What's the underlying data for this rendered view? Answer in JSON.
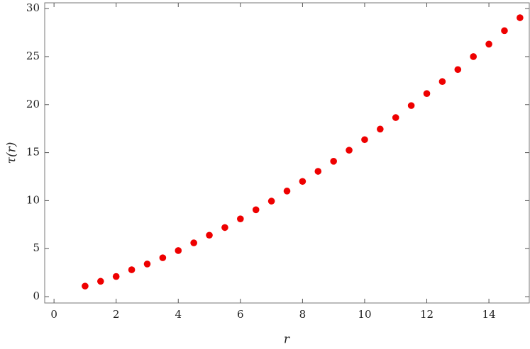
{
  "chart_data": {
    "type": "scatter",
    "x_label": "r",
    "y_label": "τ(r)",
    "x": [
      1,
      1.5,
      2,
      2.5,
      3,
      3.5,
      4,
      4.5,
      5,
      5.5,
      6,
      6.5,
      7,
      7.5,
      8,
      8.5,
      9,
      9.5,
      10,
      10.5,
      11,
      11.5,
      12,
      12.5,
      13,
      13.5,
      14,
      14.5,
      15
    ],
    "values": [
      1.1,
      1.6,
      2.1,
      2.8,
      3.4,
      4.05,
      4.8,
      5.6,
      6.4,
      7.2,
      8.1,
      9.05,
      9.95,
      11.0,
      12.0,
      13.05,
      14.1,
      15.25,
      16.35,
      17.45,
      18.65,
      19.9,
      21.15,
      22.4,
      23.65,
      25.0,
      26.3,
      27.7,
      29.05
    ],
    "color": "#ee0000",
    "xlim": [
      -0.3,
      15.3
    ],
    "ylim": [
      -0.66,
      30.6
    ],
    "xticks": [
      0,
      2,
      4,
      6,
      8,
      10,
      12,
      14
    ],
    "yticks": [
      0,
      5,
      10,
      15,
      20,
      25,
      30
    ]
  }
}
